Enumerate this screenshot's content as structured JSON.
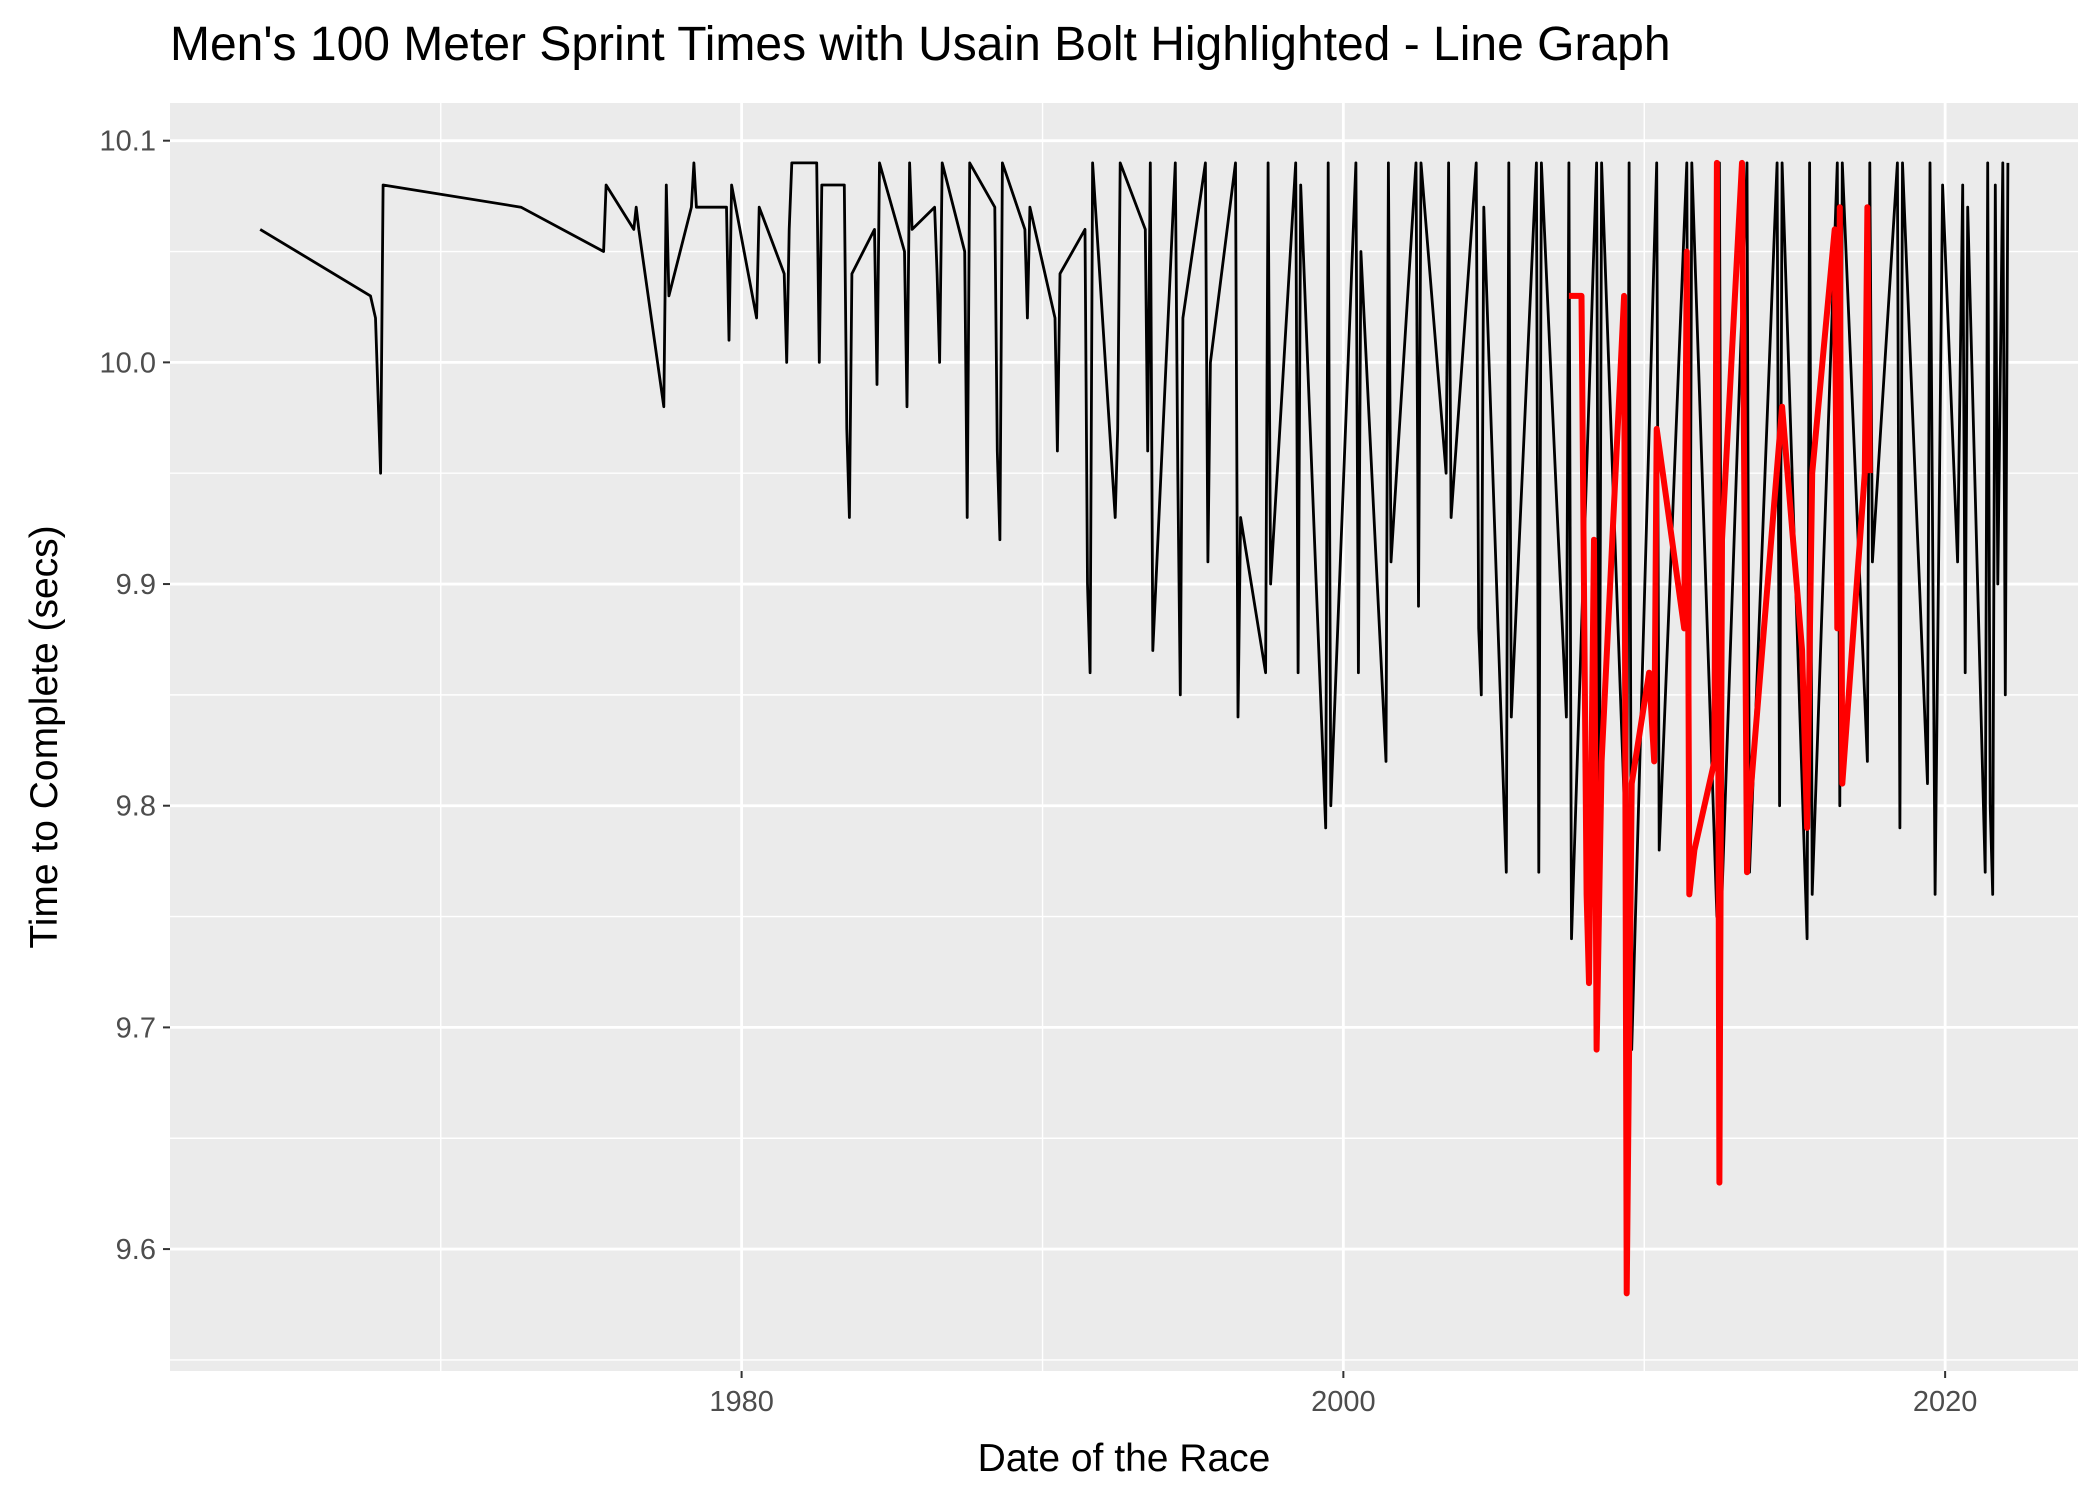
{
  "chart_data": {
    "type": "line",
    "title": "Men's 100 Meter Sprint Times with Usain Bolt Highlighted - Line Graph",
    "xlabel": "Date of the Race",
    "ylabel": "Time to Complete (secs)",
    "x_scale": "date",
    "xlim": [
      "1961-01-01",
      "2024-06-01"
    ],
    "ylim": [
      9.545,
      10.117
    ],
    "x_ticks": [
      "1980",
      "2000",
      "2020"
    ],
    "x_minor_ticks": [
      "1970",
      "1990",
      "2010"
    ],
    "y_ticks": [
      9.6,
      9.7,
      9.8,
      9.9,
      10.0,
      10.1
    ],
    "y_tick_labels": [
      "9.6",
      "9.7",
      "9.8",
      "9.9",
      "10.0",
      "10.1"
    ],
    "grid": true,
    "legend": "none",
    "colors": {
      "panel": "#ebebeb",
      "grid": "#ffffff",
      "other": "#000000",
      "bolt": "#ff0000"
    },
    "series": [
      {
        "color": "#000000",
        "stroke": "thin",
        "points": [
          [
            "1964-01-01",
            10.06
          ],
          [
            "1967-09-01",
            10.03
          ],
          [
            "1967-11-01",
            10.02
          ],
          [
            "1968-01-01",
            9.95
          ],
          [
            "1968-02-01",
            10.08
          ],
          [
            "1972-09-01",
            10.07
          ],
          [
            "1975-06-01",
            10.05
          ],
          [
            "1975-07-01",
            10.08
          ],
          [
            "1976-06-01",
            10.06
          ],
          [
            "1976-07-01",
            10.07
          ],
          [
            "1976-08-01",
            10.06
          ],
          [
            "1977-06-01",
            9.98
          ],
          [
            "1977-07-01",
            10.08
          ],
          [
            "1977-08-01",
            10.03
          ],
          [
            "1978-05-01",
            10.07
          ],
          [
            "1978-06-01",
            10.09
          ],
          [
            "1978-07-01",
            10.07
          ],
          [
            "1979-07-01",
            10.07
          ],
          [
            "1979-08-01",
            10.01
          ],
          [
            "1979-09-01",
            10.08
          ],
          [
            "1980-07-01",
            10.02
          ],
          [
            "1980-08-01",
            10.07
          ],
          [
            "1981-06-01",
            10.04
          ],
          [
            "1981-07-01",
            10.0
          ],
          [
            "1981-08-01",
            10.06
          ],
          [
            "1981-09-01",
            10.09
          ],
          [
            "1982-07-01",
            10.09
          ],
          [
            "1982-08-01",
            10.0
          ],
          [
            "1982-09-01",
            10.08
          ],
          [
            "1983-06-01",
            10.08
          ],
          [
            "1983-07-01",
            9.97
          ],
          [
            "1983-08-01",
            9.93
          ],
          [
            "1983-09-01",
            10.04
          ],
          [
            "1984-06-01",
            10.06
          ],
          [
            "1984-07-01",
            9.99
          ],
          [
            "1984-08-01",
            10.09
          ],
          [
            "1985-06-01",
            10.05
          ],
          [
            "1985-07-01",
            9.98
          ],
          [
            "1985-08-01",
            10.09
          ],
          [
            "1985-09-01",
            10.06
          ],
          [
            "1986-06-01",
            10.07
          ],
          [
            "1986-07-01",
            10.04
          ],
          [
            "1986-08-01",
            10.0
          ],
          [
            "1986-09-01",
            10.09
          ],
          [
            "1987-06-01",
            10.05
          ],
          [
            "1987-07-01",
            9.93
          ],
          [
            "1987-08-01",
            10.09
          ],
          [
            "1988-06-01",
            10.07
          ],
          [
            "1988-07-01",
            9.96
          ],
          [
            "1988-08-01",
            9.92
          ],
          [
            "1988-09-01",
            10.09
          ],
          [
            "1989-06-01",
            10.06
          ],
          [
            "1989-07-01",
            10.02
          ],
          [
            "1989-08-01",
            10.07
          ],
          [
            "1990-06-01",
            10.02
          ],
          [
            "1990-07-01",
            9.96
          ],
          [
            "1990-08-01",
            10.04
          ],
          [
            "1991-06-01",
            10.06
          ],
          [
            "1991-07-01",
            9.9
          ],
          [
            "1991-08-01",
            9.86
          ],
          [
            "1991-09-01",
            10.09
          ],
          [
            "1992-06-01",
            9.93
          ],
          [
            "1992-07-01",
            9.97
          ],
          [
            "1992-08-01",
            10.09
          ],
          [
            "1993-06-01",
            10.06
          ],
          [
            "1993-07-01",
            9.96
          ],
          [
            "1993-08-01",
            10.09
          ],
          [
            "1993-09-01",
            9.87
          ],
          [
            "1994-06-01",
            10.09
          ],
          [
            "1994-07-01",
            9.95
          ],
          [
            "1994-08-01",
            9.85
          ],
          [
            "1994-09-01",
            10.02
          ],
          [
            "1995-06-01",
            10.09
          ],
          [
            "1995-07-01",
            9.91
          ],
          [
            "1995-08-01",
            10.0
          ],
          [
            "1996-06-01",
            10.09
          ],
          [
            "1996-07-01",
            9.84
          ],
          [
            "1996-08-01",
            9.93
          ],
          [
            "1997-06-01",
            9.86
          ],
          [
            "1997-07-01",
            10.09
          ],
          [
            "1997-08-01",
            9.9
          ],
          [
            "1998-06-01",
            10.09
          ],
          [
            "1998-07-01",
            9.86
          ],
          [
            "1998-08-01",
            10.08
          ],
          [
            "1999-06-01",
            9.79
          ],
          [
            "1999-07-01",
            10.09
          ],
          [
            "1999-08-01",
            9.8
          ],
          [
            "2000-06-01",
            10.09
          ],
          [
            "2000-07-01",
            9.86
          ],
          [
            "2000-08-01",
            10.05
          ],
          [
            "2001-06-01",
            9.82
          ],
          [
            "2001-07-01",
            10.09
          ],
          [
            "2001-08-01",
            9.91
          ],
          [
            "2002-06-01",
            10.09
          ],
          [
            "2002-07-01",
            9.89
          ],
          [
            "2002-08-01",
            10.09
          ],
          [
            "2003-06-01",
            9.95
          ],
          [
            "2003-07-01",
            10.09
          ],
          [
            "2003-08-01",
            9.93
          ],
          [
            "2004-06-01",
            10.09
          ],
          [
            "2004-07-01",
            9.88
          ],
          [
            "2004-08-01",
            9.85
          ],
          [
            "2004-09-01",
            10.07
          ],
          [
            "2005-06-01",
            9.77
          ],
          [
            "2005-07-01",
            10.09
          ],
          [
            "2005-08-01",
            9.84
          ],
          [
            "2006-06-01",
            10.09
          ],
          [
            "2006-07-01",
            9.77
          ],
          [
            "2006-08-01",
            10.09
          ],
          [
            "2007-06-01",
            9.84
          ],
          [
            "2007-07-01",
            10.09
          ],
          [
            "2007-08-01",
            9.74
          ],
          [
            "2008-06-01",
            10.09
          ],
          [
            "2008-07-01",
            9.76
          ],
          [
            "2008-08-01",
            10.09
          ],
          [
            "2009-06-01",
            9.77
          ],
          [
            "2009-07-01",
            10.09
          ],
          [
            "2009-08-01",
            9.69
          ],
          [
            "2010-06-01",
            10.09
          ],
          [
            "2010-07-01",
            9.78
          ],
          [
            "2011-06-01",
            10.09
          ],
          [
            "2011-07-01",
            9.78
          ],
          [
            "2011-08-01",
            10.09
          ],
          [
            "2012-06-01",
            9.75
          ],
          [
            "2012-07-01",
            10.09
          ],
          [
            "2012-08-01",
            9.76
          ],
          [
            "2013-06-01",
            10.09
          ],
          [
            "2013-07-01",
            9.77
          ],
          [
            "2014-06-01",
            10.09
          ],
          [
            "2014-07-01",
            9.8
          ],
          [
            "2014-08-01",
            10.09
          ],
          [
            "2015-06-01",
            9.74
          ],
          [
            "2015-07-01",
            10.09
          ],
          [
            "2015-08-01",
            9.76
          ],
          [
            "2016-06-01",
            10.09
          ],
          [
            "2016-07-01",
            9.8
          ],
          [
            "2016-08-01",
            10.09
          ],
          [
            "2017-06-01",
            9.82
          ],
          [
            "2017-07-01",
            10.09
          ],
          [
            "2017-08-01",
            9.91
          ],
          [
            "2018-06-01",
            10.09
          ],
          [
            "2018-07-01",
            9.79
          ],
          [
            "2018-08-01",
            10.09
          ],
          [
            "2019-06-01",
            9.81
          ],
          [
            "2019-07-01",
            10.09
          ],
          [
            "2019-09-01",
            9.76
          ],
          [
            "2019-12-01",
            10.08
          ],
          [
            "2020-06-01",
            9.91
          ],
          [
            "2020-08-01",
            10.08
          ],
          [
            "2020-09-01",
            9.86
          ],
          [
            "2020-10-01",
            10.07
          ],
          [
            "2021-05-01",
            9.77
          ],
          [
            "2021-06-01",
            10.09
          ],
          [
            "2021-07-01",
            9.8
          ],
          [
            "2021-08-01",
            9.76
          ],
          [
            "2021-09-01",
            10.08
          ],
          [
            "2021-10-01",
            9.9
          ],
          [
            "2021-12-01",
            10.09
          ],
          [
            "2022-01-01",
            9.85
          ],
          [
            "2022-02-01",
            10.09
          ]
        ]
      },
      {
        "color": "#ff0000",
        "stroke": "thick",
        "points": [
          [
            "2007-07-01",
            10.03
          ],
          [
            "2007-12-01",
            10.03
          ],
          [
            "2008-02-01",
            9.76
          ],
          [
            "2008-03-01",
            9.72
          ],
          [
            "2008-05-01",
            9.92
          ],
          [
            "2008-06-01",
            9.69
          ],
          [
            "2008-08-01",
            9.82
          ],
          [
            "2009-05-01",
            10.03
          ],
          [
            "2009-06-01",
            9.58
          ],
          [
            "2009-08-01",
            9.81
          ],
          [
            "2010-03-01",
            9.86
          ],
          [
            "2010-05-01",
            9.82
          ],
          [
            "2010-06-01",
            9.97
          ],
          [
            "2011-05-01",
            9.88
          ],
          [
            "2011-06-01",
            10.05
          ],
          [
            "2011-07-01",
            9.76
          ],
          [
            "2011-09-01",
            9.78
          ],
          [
            "2012-05-01",
            9.82
          ],
          [
            "2012-06-01",
            10.09
          ],
          [
            "2012-07-01",
            9.63
          ],
          [
            "2012-08-01",
            9.92
          ],
          [
            "2013-04-01",
            10.09
          ],
          [
            "2013-06-01",
            9.77
          ],
          [
            "2013-07-01",
            9.8
          ],
          [
            "2014-08-01",
            9.98
          ],
          [
            "2015-04-01",
            9.87
          ],
          [
            "2015-06-01",
            9.79
          ],
          [
            "2015-08-01",
            9.95
          ],
          [
            "2016-05-01",
            10.06
          ],
          [
            "2016-06-01",
            9.88
          ],
          [
            "2016-07-01",
            10.07
          ],
          [
            "2016-08-01",
            9.81
          ],
          [
            "2017-05-01",
            9.95
          ],
          [
            "2017-06-01",
            10.07
          ],
          [
            "2017-07-01",
            9.95
          ]
        ]
      }
    ]
  }
}
